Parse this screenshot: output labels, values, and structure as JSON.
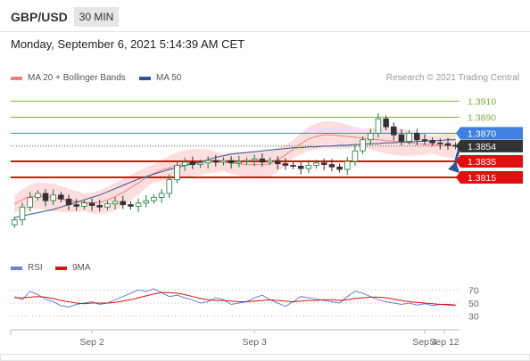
{
  "header": {
    "pair": "GBP/USD",
    "timeframe": "30 MIN",
    "datetime": "Monday, September 6, 2021 5:14:39 AM CET",
    "copyright": "Research © 2021 Trading Central"
  },
  "chart_data": [
    {
      "type": "candlestick",
      "legend": [
        {
          "name": "MA 20 + Bollinger Bands",
          "color": "#f08080"
        },
        {
          "name": "MA 50",
          "color": "#2f5597"
        }
      ],
      "price_range": [
        1.3745,
        1.3925
      ],
      "x_ticks": [
        {
          "label": "Sep 2",
          "index": 10
        },
        {
          "label": "Sep 3",
          "index": 31
        },
        {
          "label": "Sep 4",
          "index": 53
        },
        {
          "label": "Sep 12",
          "index": 61
        }
      ],
      "levels": [
        {
          "value": 1.391,
          "label": "1.3910",
          "kind": "resistance",
          "color": "#7cb342"
        },
        {
          "value": 1.389,
          "label": "1.3890",
          "kind": "resistance",
          "color": "#7cb342"
        },
        {
          "value": 1.387,
          "label": "1.3870",
          "kind": "pivot",
          "color": "#3f7fe0"
        },
        {
          "value": 1.3854,
          "label": "1.3854",
          "kind": "last",
          "color": "#333333"
        },
        {
          "value": 1.3835,
          "label": "1.3835",
          "kind": "support",
          "color": "#e01010"
        },
        {
          "value": 1.3815,
          "label": "1.3815",
          "kind": "support",
          "color": "#e01010"
        }
      ],
      "close": [
        1.3762,
        1.3778,
        1.379,
        1.3795,
        1.3786,
        1.3793,
        1.3788,
        1.3781,
        1.3779,
        1.3783,
        1.378,
        1.3778,
        1.3782,
        1.3785,
        1.3781,
        1.3779,
        1.3783,
        1.3786,
        1.379,
        1.3795,
        1.3812,
        1.383,
        1.3834,
        1.3831,
        1.3833,
        1.3836,
        1.3834,
        1.3836,
        1.3833,
        1.3835,
        1.3836,
        1.3838,
        1.3834,
        1.3836,
        1.3832,
        1.383,
        1.3829,
        1.3826,
        1.383,
        1.3833,
        1.3831,
        1.3828,
        1.3825,
        1.3835,
        1.3848,
        1.3862,
        1.387,
        1.3888,
        1.3878,
        1.3868,
        1.386,
        1.387,
        1.3862,
        1.3861,
        1.3858,
        1.3857,
        1.3855,
        1.3854
      ],
      "ma20": [
        1.3782,
        1.3787,
        1.3791,
        1.3792,
        1.3791,
        1.379,
        1.3788,
        1.3786,
        1.3785,
        1.3784,
        1.3783,
        1.3784,
        1.3787,
        1.3791,
        1.3796,
        1.3802,
        1.3808,
        1.3815,
        1.382,
        1.3824,
        1.3827,
        1.383,
        1.3832,
        1.3833,
        1.3834,
        1.3835,
        1.3834,
        1.3834,
        1.3833,
        1.3832,
        1.3831,
        1.3831,
        1.3831,
        1.3832,
        1.3837,
        1.3843,
        1.385,
        1.3857,
        1.3863,
        1.3866,
        1.3868,
        1.3868,
        1.3867,
        1.3866,
        1.3865,
        1.3864,
        1.3863,
        1.3862,
        1.3861,
        1.386,
        1.3859,
        1.3858,
        1.3857,
        1.3856,
        1.3856,
        1.3855,
        1.3855,
        1.3854
      ],
      "ma50": [
        1.3765,
        1.3767,
        1.3769,
        1.3771,
        1.3773,
        1.3775,
        1.3778,
        1.3781,
        1.3784,
        1.3787,
        1.379,
        1.3793,
        1.3797,
        1.3801,
        1.3805,
        1.3809,
        1.3813,
        1.3816,
        1.3819,
        1.3822,
        1.3825,
        1.3827,
        1.383,
        1.3832,
        1.3834,
        1.3837,
        1.384,
        1.3842,
        1.3844,
        1.3845,
        1.3846,
        1.3847,
        1.3848,
        1.3849,
        1.385,
        1.3851,
        1.3852,
        1.3852,
        1.3853,
        1.3853,
        1.3854,
        1.3854,
        1.3855,
        1.3855,
        1.3856,
        1.3856,
        1.3857,
        1.3857,
        1.3858,
        1.3858,
        1.3859,
        1.3859,
        1.386,
        1.386,
        1.3861,
        1.3861,
        1.3862,
        1.3862
      ],
      "forecast": {
        "from": 1.3856,
        "to": 1.3825,
        "direction": "down"
      }
    },
    {
      "type": "line",
      "legend": [
        {
          "name": "RSI",
          "color": "#6a7fd9"
        },
        {
          "name": "9MA",
          "color": "#e01010"
        }
      ],
      "y_ticks": [
        70,
        50,
        30
      ],
      "ylim": [
        20,
        80
      ],
      "rsi": [
        60,
        55,
        68,
        63,
        56,
        52,
        46,
        44,
        48,
        50,
        52,
        48,
        50,
        55,
        60,
        65,
        70,
        68,
        72,
        66,
        60,
        62,
        58,
        55,
        50,
        52,
        58,
        55,
        48,
        50,
        52,
        58,
        62,
        55,
        50,
        45,
        52,
        60,
        58,
        56,
        54,
        52,
        50,
        60,
        68,
        65,
        60,
        55,
        52,
        50,
        48,
        50,
        47,
        49,
        46,
        48,
        47,
        46
      ],
      "rsi_ma": [
        58,
        58,
        59,
        60,
        59,
        57,
        54,
        52,
        50,
        49,
        50,
        50,
        50,
        51,
        53,
        55,
        58,
        61,
        64,
        66,
        66,
        65,
        63,
        60,
        57,
        55,
        54,
        54,
        53,
        52,
        52,
        53,
        54,
        55,
        54,
        53,
        52,
        53,
        54,
        54,
        55,
        55,
        54,
        55,
        57,
        58,
        59,
        59,
        58,
        56,
        54,
        52,
        51,
        50,
        49,
        48,
        48,
        47
      ]
    }
  ]
}
